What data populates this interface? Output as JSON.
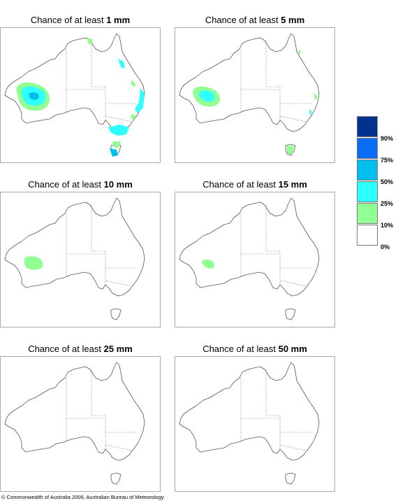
{
  "panels": [
    {
      "prefix": "Chance of at least ",
      "amount": "1 mm"
    },
    {
      "prefix": "Chance of at least ",
      "amount": "5 mm"
    },
    {
      "prefix": "Chance of at least ",
      "amount": "10 mm"
    },
    {
      "prefix": "Chance of at least ",
      "amount": "15 mm"
    },
    {
      "prefix": "Chance of at least ",
      "amount": "25 mm"
    },
    {
      "prefix": "Chance of at least ",
      "amount": "50 mm"
    }
  ],
  "legend": {
    "labels": [
      "90%",
      "75%",
      "50%",
      "25%",
      "10%",
      "0%"
    ],
    "colors": [
      "#02318f",
      "#0a6cf5",
      "#00bfef",
      "#2effff",
      "#92ff92",
      "#ffffff"
    ]
  },
  "copyright": "© Commonwealth of Australia 2006, Australian Bureau of Meteorology"
}
